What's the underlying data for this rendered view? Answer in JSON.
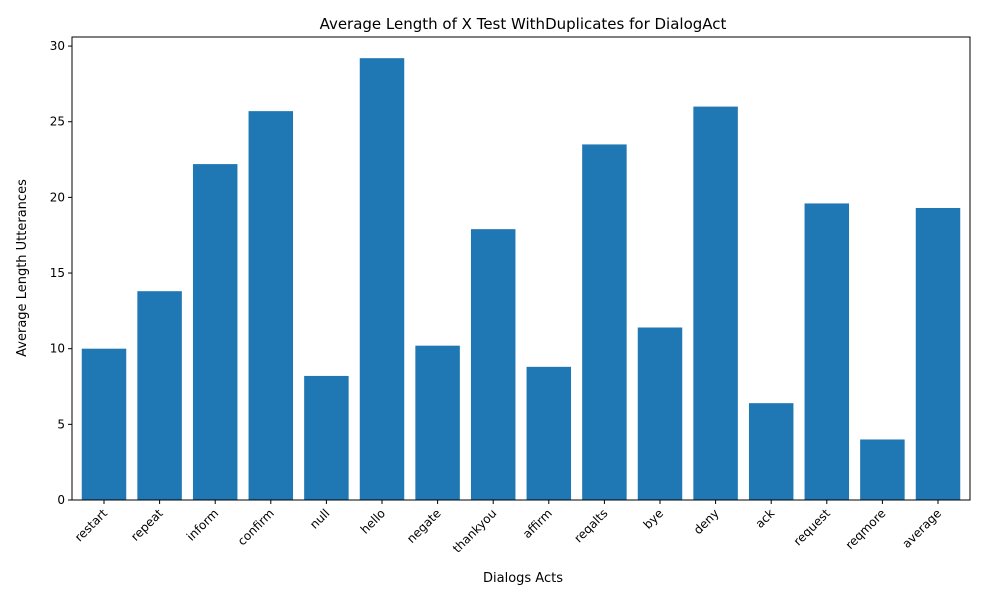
{
  "chart_data": {
    "type": "bar",
    "title": "Average Length of X Test WithDuplicates for DialogAct",
    "xlabel": "Dialogs Acts",
    "ylabel": "Average Length Utterances",
    "categories": [
      "restart",
      "repeat",
      "inform",
      "confirm",
      "null",
      "hello",
      "negate",
      "thankyou",
      "affirm",
      "reqalts",
      "bye",
      "deny",
      "ack",
      "request",
      "reqmore",
      "average"
    ],
    "values": [
      10.0,
      13.8,
      22.2,
      25.7,
      8.2,
      29.2,
      10.2,
      17.9,
      8.8,
      23.5,
      11.4,
      26.0,
      6.4,
      19.6,
      4.0,
      19.3
    ],
    "ylim": [
      0,
      30.6
    ],
    "yticks": [
      0,
      5,
      10,
      15,
      20,
      25,
      30
    ],
    "bar_color": "#1f77b4",
    "grid": false,
    "x_tick_rotation_deg": 45
  }
}
